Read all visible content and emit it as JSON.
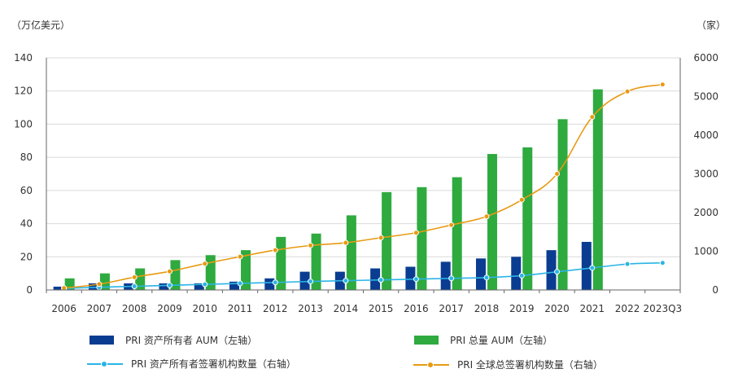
{
  "chart_data": {
    "type": "bar+line",
    "left_unit": "（万亿美元）",
    "right_unit": "（家）",
    "categories": [
      "2006",
      "2007",
      "2008",
      "2009",
      "2010",
      "2011",
      "2012",
      "2013",
      "2014",
      "2015",
      "2016",
      "2017",
      "2018",
      "2019",
      "2020",
      "2021",
      "2022",
      "2023Q3"
    ],
    "ylim_left": [
      0,
      140
    ],
    "yticks_left": [
      "0",
      "20",
      "40",
      "60",
      "80",
      "100",
      "120",
      "140"
    ],
    "ylim_right": [
      0,
      6000
    ],
    "yticks_right": [
      "0",
      "1000",
      "2000",
      "3000",
      "4000",
      "5000",
      "6000"
    ],
    "series": [
      {
        "name": "PRI 资产所有者 AUM（左轴）",
        "type": "bar",
        "axis": "left",
        "color": "#0a3d91",
        "values": [
          2,
          4,
          4,
          4,
          4,
          5,
          7,
          11,
          11,
          13,
          14,
          17,
          19,
          20,
          24,
          29,
          null,
          null
        ]
      },
      {
        "name": "PRI 总量 AUM（左轴）",
        "type": "bar",
        "axis": "left",
        "color": "#2eaa3f",
        "values": [
          7,
          10,
          13,
          18,
          21,
          24,
          32,
          34,
          45,
          59,
          62,
          68,
          82,
          86,
          103,
          121,
          null,
          null
        ]
      },
      {
        "name": "PRI 资产所有者签署机构数量（右轴）",
        "type": "line",
        "axis": "right",
        "color": "#2bb4e6",
        "values": [
          40,
          70,
          95,
          120,
          145,
          170,
          195,
          220,
          240,
          260,
          280,
          300,
          320,
          370,
          470,
          570,
          670,
          700
        ]
      },
      {
        "name": "PRI 全球总签署机构数量（右轴）",
        "type": "line",
        "axis": "right",
        "color": "#e89a12",
        "values": [
          50,
          150,
          330,
          480,
          680,
          860,
          1030,
          1150,
          1220,
          1350,
          1480,
          1680,
          1900,
          2330,
          3000,
          4470,
          5130,
          5310
        ]
      }
    ],
    "grid": true,
    "legend": "bottom"
  }
}
